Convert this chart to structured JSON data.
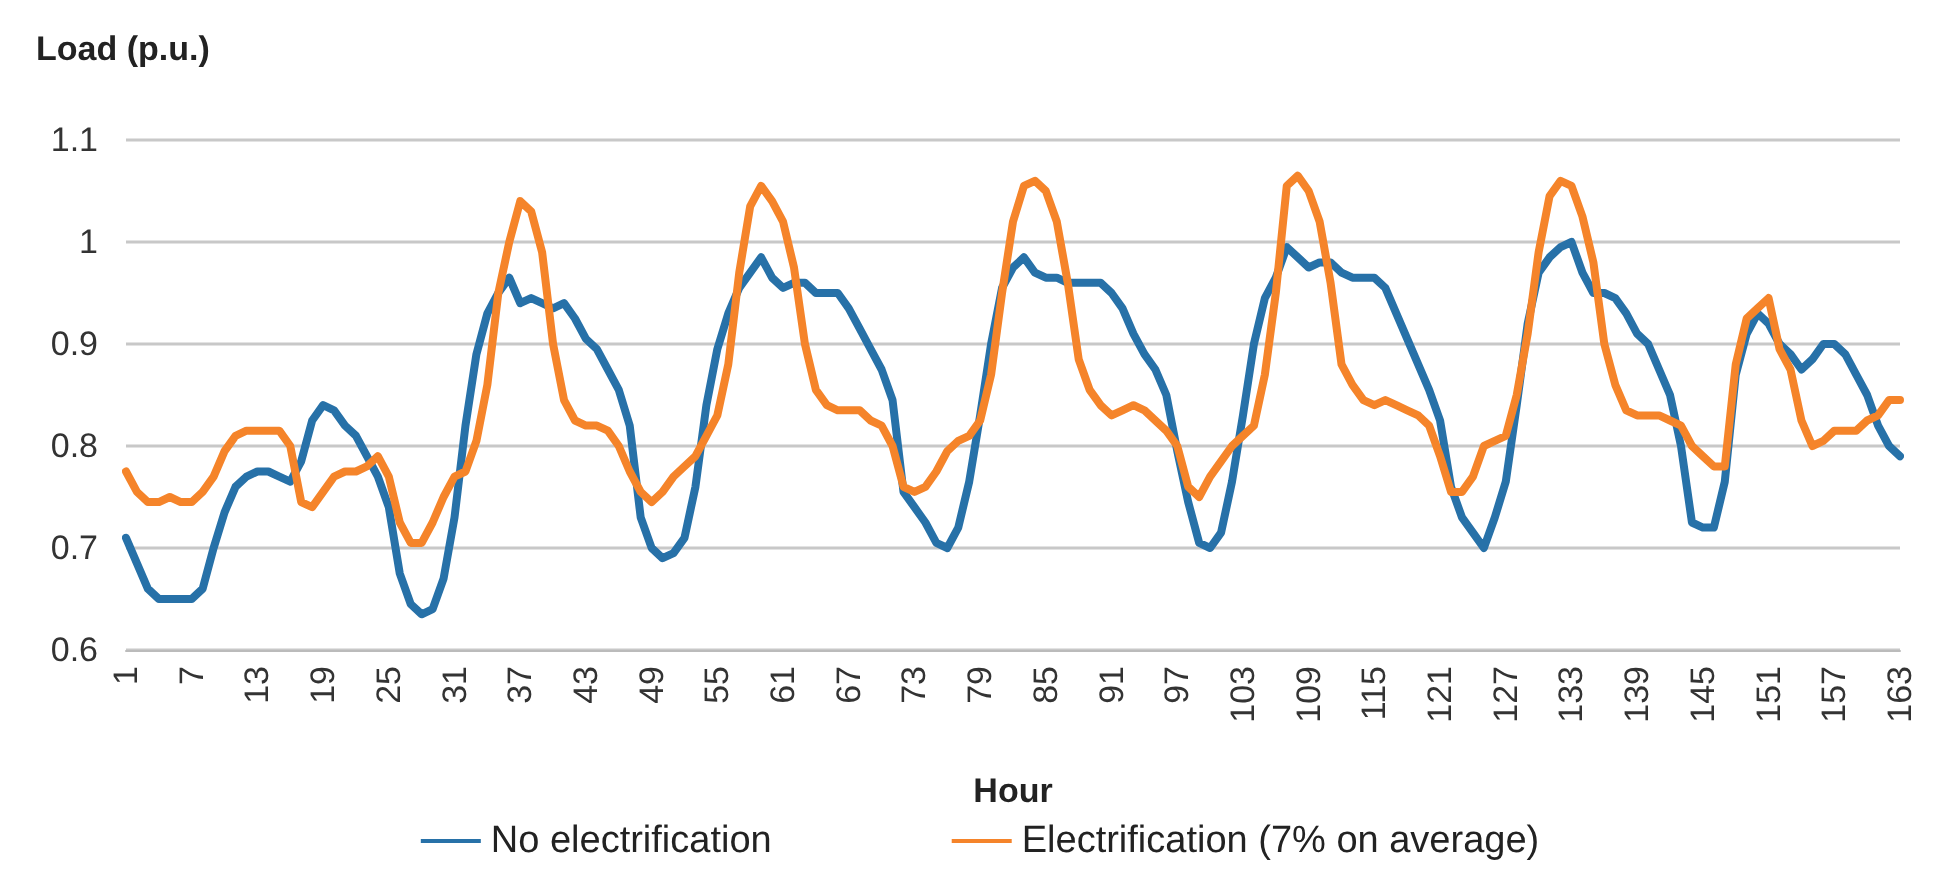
{
  "chart_data": {
    "type": "line",
    "ylabel": "Load (p.u.)",
    "xlabel": "Hour",
    "categories": [
      "1",
      null,
      null,
      null,
      null,
      null,
      "7",
      null,
      null,
      null,
      null,
      null,
      "13",
      null,
      null,
      null,
      null,
      null,
      "19",
      null,
      null,
      null,
      null,
      null,
      "25",
      null,
      null,
      null,
      null,
      null,
      "31",
      null,
      null,
      null,
      null,
      null,
      "37",
      null,
      null,
      null,
      null,
      null,
      "43",
      null,
      null,
      null,
      null,
      null,
      "49",
      null,
      null,
      null,
      null,
      null,
      "55",
      null,
      null,
      null,
      null,
      null,
      "61",
      null,
      null,
      null,
      null,
      null,
      "67",
      null,
      null,
      null,
      null,
      null,
      "73",
      null,
      null,
      null,
      null,
      null,
      "79",
      null,
      null,
      null,
      null,
      null,
      "85",
      null,
      null,
      null,
      null,
      null,
      "91",
      null,
      null,
      null,
      null,
      null,
      "97",
      null,
      null,
      null,
      null,
      null,
      "103",
      null,
      null,
      null,
      null,
      null,
      "109",
      null,
      null,
      null,
      null,
      null,
      "115",
      null,
      null,
      null,
      null,
      null,
      "121",
      null,
      null,
      null,
      null,
      null,
      "127",
      null,
      null,
      null,
      null,
      null,
      "133",
      null,
      null,
      null,
      null,
      null,
      "139",
      null,
      null,
      null,
      null,
      null,
      "145",
      null,
      null,
      null,
      null,
      null,
      "151",
      null,
      null,
      null,
      null,
      null,
      "157",
      null,
      null,
      null,
      null,
      null,
      "163"
    ],
    "series": [
      {
        "name": "No electrification",
        "color": "#2771a8",
        "values": [
          0.71,
          0.685,
          0.66,
          0.65,
          0.65,
          0.65,
          0.65,
          0.66,
          0.7,
          0.735,
          0.76,
          0.77,
          0.775,
          0.775,
          0.77,
          0.765,
          0.785,
          0.825,
          0.84,
          0.835,
          0.82,
          0.81,
          0.79,
          0.77,
          0.74,
          0.675,
          0.645,
          0.635,
          0.64,
          0.67,
          0.73,
          0.82,
          0.89,
          0.93,
          0.95,
          0.965,
          0.94,
          0.945,
          0.94,
          0.935,
          0.94,
          0.925,
          0.905,
          0.895,
          0.875,
          0.855,
          0.82,
          0.73,
          0.7,
          0.69,
          0.695,
          0.71,
          0.76,
          0.84,
          0.895,
          0.93,
          0.955,
          0.97,
          0.985,
          0.965,
          0.955,
          0.96,
          0.96,
          0.95,
          0.95,
          0.95,
          0.935,
          0.915,
          0.895,
          0.875,
          0.845,
          0.755,
          0.74,
          0.725,
          0.705,
          0.7,
          0.72,
          0.765,
          0.83,
          0.9,
          0.955,
          0.975,
          0.985,
          0.97,
          0.965,
          0.965,
          0.96,
          0.96,
          0.96,
          0.96,
          0.95,
          0.935,
          0.91,
          0.89,
          0.875,
          0.85,
          0.795,
          0.745,
          0.705,
          0.7,
          0.715,
          0.765,
          0.83,
          0.9,
          0.945,
          0.965,
          0.995,
          0.985,
          0.975,
          0.98,
          0.98,
          0.97,
          0.965,
          0.965,
          0.965,
          0.955,
          0.93,
          0.905,
          0.88,
          0.855,
          0.825,
          0.76,
          0.73,
          0.715,
          0.7,
          0.73,
          0.765,
          0.84,
          0.92,
          0.97,
          0.985,
          0.995,
          1.0,
          0.97,
          0.95,
          0.95,
          0.945,
          0.93,
          0.91,
          0.9,
          0.875,
          0.85,
          0.8,
          0.725,
          0.72,
          0.72,
          0.765,
          0.87,
          0.91,
          0.93,
          0.92,
          0.9,
          0.89,
          0.875,
          0.885,
          0.9,
          0.9,
          0.89,
          0.87,
          0.85,
          0.82,
          0.8,
          0.79
        ]
      },
      {
        "name": "Electrification (7% on average)",
        "color": "#f5842a",
        "values": [
          0.775,
          0.755,
          0.745,
          0.745,
          0.75,
          0.745,
          0.745,
          0.755,
          0.77,
          0.795,
          0.81,
          0.815,
          0.815,
          0.815,
          0.815,
          0.8,
          0.745,
          0.74,
          0.755,
          0.77,
          0.775,
          0.775,
          0.78,
          0.79,
          0.77,
          0.725,
          0.705,
          0.705,
          0.725,
          0.75,
          0.77,
          0.775,
          0.805,
          0.86,
          0.95,
          1.0,
          1.04,
          1.03,
          0.99,
          0.9,
          0.845,
          0.825,
          0.82,
          0.82,
          0.815,
          0.8,
          0.775,
          0.755,
          0.745,
          0.755,
          0.77,
          0.78,
          0.79,
          0.81,
          0.83,
          0.88,
          0.97,
          1.035,
          1.055,
          1.04,
          1.02,
          0.975,
          0.9,
          0.855,
          0.84,
          0.835,
          0.835,
          0.835,
          0.825,
          0.82,
          0.8,
          0.76,
          0.755,
          0.76,
          0.775,
          0.795,
          0.805,
          0.81,
          0.825,
          0.87,
          0.95,
          1.02,
          1.055,
          1.06,
          1.05,
          1.02,
          0.96,
          0.885,
          0.855,
          0.84,
          0.83,
          0.835,
          0.84,
          0.835,
          0.825,
          0.815,
          0.8,
          0.76,
          0.75,
          0.77,
          0.785,
          0.8,
          0.81,
          0.82,
          0.87,
          0.95,
          1.055,
          1.065,
          1.05,
          1.02,
          0.96,
          0.88,
          0.86,
          0.845,
          0.84,
          0.845,
          0.84,
          0.835,
          0.83,
          0.82,
          0.79,
          0.755,
          0.755,
          0.77,
          0.8,
          0.805,
          0.81,
          0.85,
          0.91,
          0.99,
          1.045,
          1.06,
          1.055,
          1.025,
          0.98,
          0.9,
          0.86,
          0.835,
          0.83,
          0.83,
          0.83,
          0.825,
          0.82,
          0.8,
          0.79,
          0.78,
          0.78,
          0.88,
          0.925,
          0.935,
          0.945,
          0.895,
          0.875,
          0.825,
          0.8,
          0.805,
          0.815,
          0.815,
          0.815,
          0.825,
          0.83,
          0.845,
          0.845
        ]
      }
    ],
    "ylim": [
      0.6,
      1.1
    ],
    "yticks": [
      0.6,
      0.7,
      0.8,
      0.9,
      1,
      1.1
    ],
    "grid": "y",
    "legend": "bottom",
    "marker": "none",
    "line_style": "solid"
  }
}
